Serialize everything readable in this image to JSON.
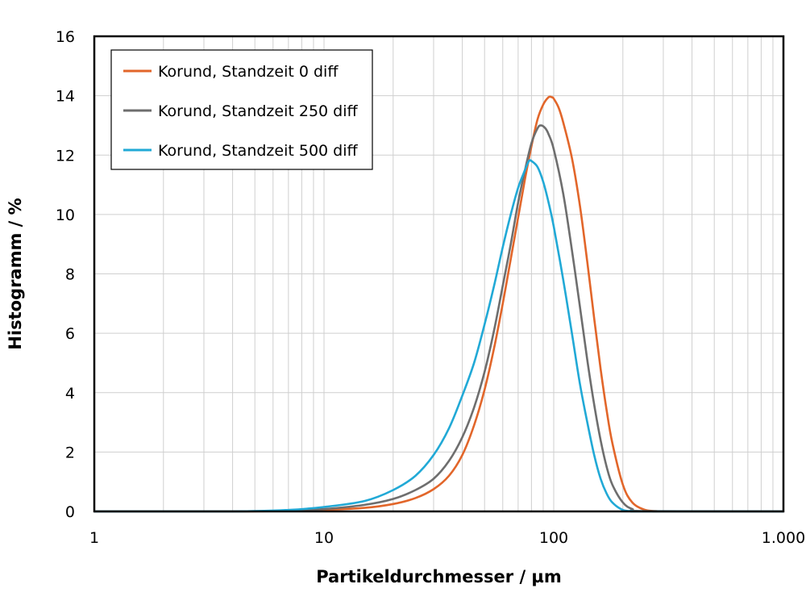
{
  "chart_data": {
    "type": "line",
    "title": "",
    "xlabel": "Partikeldurchmesser / µm",
    "ylabel": "Histogramm / %",
    "x_scale": "log",
    "xlim": [
      1,
      1000
    ],
    "ylim": [
      0,
      16
    ],
    "x_ticks": [
      1,
      10,
      100,
      1000
    ],
    "x_tick_labels": [
      "1",
      "10",
      "100",
      "1.000"
    ],
    "y_ticks": [
      0,
      2,
      4,
      6,
      8,
      10,
      12,
      14,
      16
    ],
    "y_tick_labels": [
      "0",
      "2",
      "4",
      "6",
      "8",
      "10",
      "12",
      "14",
      "16"
    ],
    "grid": "vertical minor log gridlines and horizontal lines at each y tick",
    "legend_position": "top-left",
    "series": [
      {
        "name": "Korund, Standzeit 0 diff",
        "color": "#E2662A",
        "x": [
          1,
          4,
          7,
          10,
          15,
          20,
          25,
          30,
          35,
          40,
          45,
          50,
          55,
          60,
          65,
          70,
          75,
          80,
          85,
          90,
          95,
          98,
          100,
          105,
          110,
          120,
          130,
          140,
          150,
          160,
          170,
          180,
          200,
          220,
          250,
          280,
          300,
          1000
        ],
        "y": [
          0,
          0,
          0.02,
          0.05,
          0.12,
          0.25,
          0.45,
          0.75,
          1.2,
          1.9,
          2.9,
          4.1,
          5.5,
          7.0,
          8.5,
          9.9,
          11.2,
          12.3,
          13.2,
          13.7,
          13.95,
          13.95,
          13.9,
          13.6,
          13.1,
          11.9,
          10.3,
          8.4,
          6.5,
          4.8,
          3.4,
          2.3,
          0.9,
          0.3,
          0.05,
          0.01,
          0,
          0
        ]
      },
      {
        "name": "Korund, Standzeit 250 diff",
        "color": "#6E6E6E",
        "x": [
          1,
          4,
          7,
          10,
          15,
          20,
          25,
          30,
          35,
          40,
          45,
          50,
          55,
          60,
          65,
          70,
          75,
          80,
          85,
          88,
          92,
          95,
          100,
          110,
          120,
          130,
          140,
          150,
          160,
          170,
          180,
          200,
          220,
          250,
          1000
        ],
        "y": [
          0,
          0,
          0.03,
          0.08,
          0.22,
          0.42,
          0.72,
          1.1,
          1.7,
          2.5,
          3.5,
          4.7,
          6.1,
          7.6,
          9.0,
          10.4,
          11.5,
          12.4,
          12.9,
          13.0,
          12.9,
          12.7,
          12.2,
          10.7,
          8.8,
          6.9,
          5.1,
          3.6,
          2.4,
          1.5,
          0.9,
          0.3,
          0.08,
          0.01,
          0
        ]
      },
      {
        "name": "Korund, Standzeit 500 diff",
        "color": "#21A9D6",
        "x": [
          1,
          4,
          7,
          10,
          15,
          20,
          25,
          30,
          35,
          40,
          45,
          50,
          55,
          60,
          65,
          70,
          75,
          78,
          80,
          85,
          90,
          95,
          100,
          110,
          120,
          130,
          140,
          150,
          160,
          170,
          180,
          200,
          220,
          250,
          1000
        ],
        "y": [
          0,
          0,
          0.05,
          0.15,
          0.35,
          0.72,
          1.2,
          1.9,
          2.8,
          3.9,
          5.0,
          6.3,
          7.6,
          8.9,
          10.0,
          10.9,
          11.5,
          11.8,
          11.8,
          11.6,
          11.1,
          10.4,
          9.6,
          7.8,
          6.0,
          4.3,
          3.0,
          1.9,
          1.1,
          0.6,
          0.3,
          0.05,
          0.01,
          0,
          0
        ]
      }
    ]
  }
}
